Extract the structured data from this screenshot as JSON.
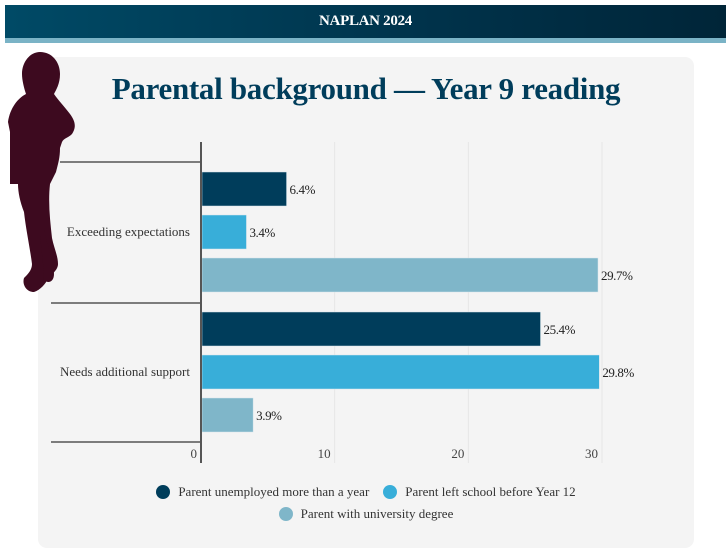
{
  "header": {
    "title": "NAPLAN 2024"
  },
  "chart_data": {
    "type": "bar",
    "orientation": "horizontal",
    "title": "Parental background — Year 9 reading",
    "categories": [
      "Exceeding expectations",
      "Needs additional support"
    ],
    "series": [
      {
        "name": "Parent unemployed more than a year",
        "color": "#003d5b",
        "values": [
          6.4,
          25.4
        ],
        "labels": [
          "6.4%",
          "25.4%"
        ]
      },
      {
        "name": "Parent left school before Year 12",
        "color": "#38aed9",
        "values": [
          3.4,
          29.8
        ],
        "labels": [
          "3.4%",
          "29.8%"
        ]
      },
      {
        "name": "Parent with university degree",
        "color": "#7fb6c9",
        "values": [
          29.7,
          3.9
        ],
        "labels": [
          "29.7%",
          "3.9%"
        ]
      }
    ],
    "xlim": [
      0,
      30
    ],
    "xticks": [
      0,
      10,
      20,
      30
    ],
    "xtick_labels": [
      "0",
      "10",
      "20",
      "30"
    ],
    "xlabel": "",
    "ylabel": "",
    "grid": true,
    "legend_position": "bottom"
  },
  "decor": {
    "silhouette_icon": "student-silhouette-icon",
    "silhouette_color": "#3d0a1f"
  }
}
